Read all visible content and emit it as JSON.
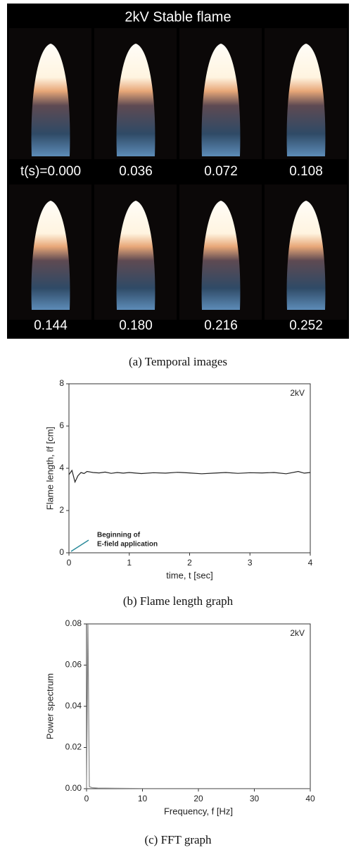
{
  "panel_a": {
    "title": "2kV Stable flame",
    "labels": [
      "t(s)=0.000",
      "0.036",
      "0.072",
      "0.108",
      "0.144",
      "0.180",
      "0.216",
      "0.252"
    ],
    "caption": "(a) Temporal images"
  },
  "chart_data": [
    {
      "type": "line",
      "annotation": "2kV",
      "note": [
        "Beginning of",
        "E-field application"
      ],
      "xlabel": "time, t [sec]",
      "ylabel": "Flame length, ℓf [cm]",
      "caption": "(b) Flame length graph",
      "xlim": [
        0,
        4
      ],
      "xticks": [
        0,
        1,
        2,
        3,
        4
      ],
      "ylim": [
        0,
        8
      ],
      "yticks": [
        0,
        2,
        4,
        6,
        8
      ],
      "series": [
        {
          "color": "#222222",
          "x": [
            0,
            0.05,
            0.1,
            0.15,
            0.2,
            0.25,
            0.3,
            0.4,
            0.5,
            0.6,
            0.7,
            0.8,
            0.9,
            1.0,
            1.2,
            1.4,
            1.6,
            1.8,
            2.0,
            2.2,
            2.4,
            2.6,
            2.8,
            3.0,
            3.2,
            3.4,
            3.6,
            3.8,
            3.9,
            4.0
          ],
          "values": [
            3.7,
            3.9,
            3.35,
            3.65,
            3.8,
            3.75,
            3.85,
            3.8,
            3.78,
            3.82,
            3.76,
            3.8,
            3.77,
            3.8,
            3.75,
            3.79,
            3.77,
            3.81,
            3.78,
            3.74,
            3.77,
            3.8,
            3.76,
            3.79,
            3.78,
            3.8,
            3.74,
            3.85,
            3.77,
            3.8
          ]
        }
      ]
    },
    {
      "type": "line",
      "annotation": "2kV",
      "xlabel": "Frequency, f [Hz]",
      "ylabel": "Power spectrum",
      "caption": "(c) FFT graph",
      "xlim": [
        0,
        40
      ],
      "xticks": [
        0,
        10,
        20,
        30,
        40
      ],
      "ylim": [
        0,
        0.08
      ],
      "yticks": [
        {
          "value": 0,
          "label": "0.00"
        },
        0.02,
        0.04,
        0.06,
        0.08
      ],
      "series": [
        {
          "color": "#888888",
          "x": [
            0,
            0.25,
            0.5,
            1,
            2,
            5,
            10,
            15,
            20,
            25,
            30,
            35,
            40
          ],
          "values": [
            0,
            0.08,
            0.001,
            0.0005,
            0.0003,
            0.0002,
            0.0001,
            0.0001,
            0.0001,
            0.0001,
            0.0001,
            0.0001,
            0.0001
          ]
        }
      ]
    }
  ]
}
